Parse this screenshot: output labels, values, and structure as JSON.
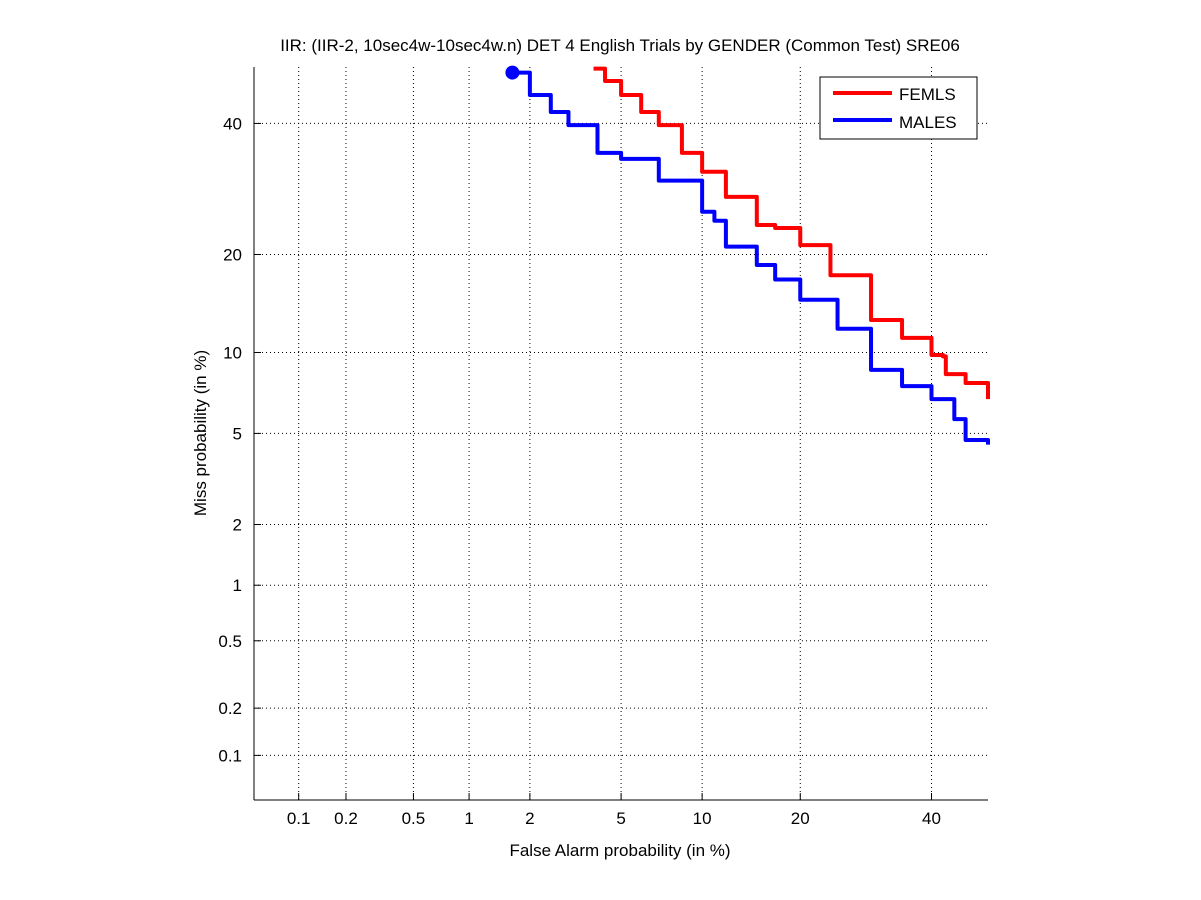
{
  "chart_data": {
    "type": "line",
    "title": "IIR: (IIR-2, 10sec4w-10sec4w.n) DET 4 English Trials by GENDER (Common Test) SRE06",
    "xlabel": "False Alarm probability (in %)",
    "ylabel": "Miss probability (in %)",
    "xscale": "normal-deviate",
    "yscale": "normal-deviate",
    "xlim": [
      0.05,
      50
    ],
    "ylim": [
      0.05,
      50
    ],
    "xticks": [
      0.1,
      0.2,
      0.5,
      1,
      2,
      5,
      10,
      20,
      40
    ],
    "xtick_labels": [
      "0.1",
      "0.2",
      "0.5",
      "1",
      "2",
      "5",
      "10",
      "20",
      "40"
    ],
    "yticks": [
      0.1,
      0.2,
      0.5,
      1,
      2,
      5,
      10,
      20,
      40
    ],
    "ytick_labels": [
      "0.1",
      "0.2",
      "0.5",
      "1",
      "2",
      "5",
      "10",
      "20",
      "40"
    ],
    "grid": true,
    "legend_position": "top-right",
    "series": [
      {
        "name": "FEMLS",
        "color": "#ff0000",
        "x": [
          3.85,
          4.3,
          5,
          6,
          7,
          8.5,
          10,
          12,
          15,
          17,
          20,
          24,
          30,
          35,
          40,
          42,
          42.5,
          46,
          50
        ],
        "y": [
          49.7,
          47.5,
          45,
          42,
          39.7,
          35,
          31.9,
          28,
          23.9,
          23.5,
          21.2,
          17.5,
          12.8,
          11.2,
          9.8,
          9.7,
          8.4,
          7.8,
          6.8
        ]
      },
      {
        "name": "MALES",
        "color": "#0000ff",
        "x": [
          1.65,
          2,
          2.5,
          3,
          4,
          5,
          7,
          10,
          11,
          12,
          15,
          17,
          20,
          25,
          30,
          35,
          40,
          44,
          46,
          50
        ],
        "y": [
          49,
          45,
          42,
          39.7,
          35,
          34,
          30.5,
          25.8,
          24.5,
          21,
          18.7,
          17,
          14.8,
          12,
          8.7,
          7.6,
          6.8,
          5.7,
          4.7,
          4.5
        ]
      }
    ],
    "marker": {
      "series": "MALES",
      "x": 1.65,
      "y": 49,
      "shape": "circle"
    }
  }
}
